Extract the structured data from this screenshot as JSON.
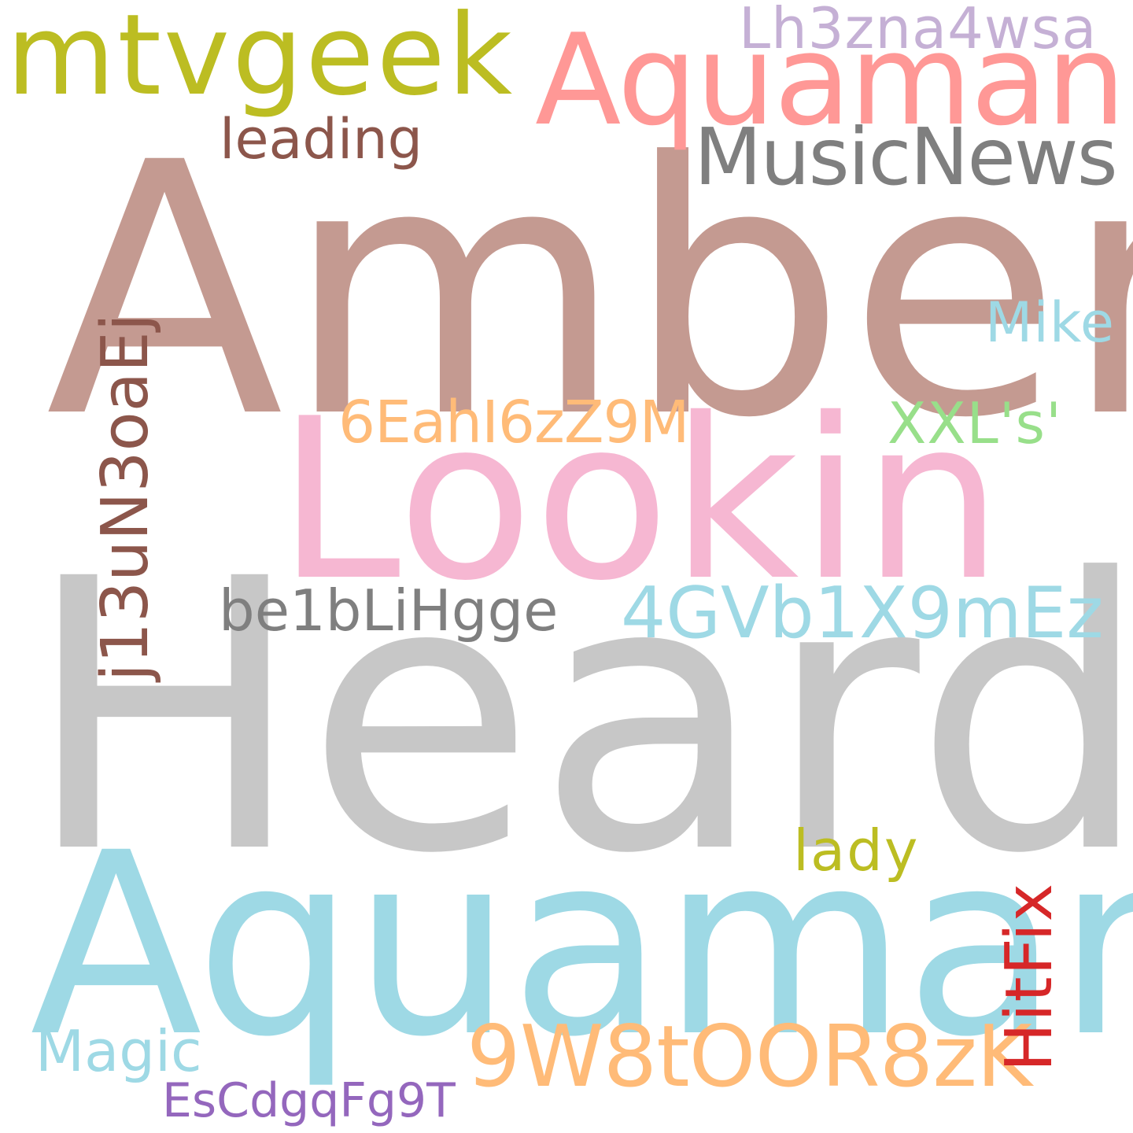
{
  "word_cloud": {
    "background": "#ffffff",
    "words": [
      {
        "text": "Amber",
        "color": "#c49a91"
      },
      {
        "text": "Heard",
        "color": "#c7c7c7"
      },
      {
        "text": "Aquaman",
        "color": "#9ed9e5"
      },
      {
        "text": "Lookin",
        "color": "#f6b7d2"
      },
      {
        "text": "Aquaman'",
        "color": "#ff9896"
      },
      {
        "text": "mtvgeek",
        "color": "#bcbd22"
      },
      {
        "text": "MusicNews",
        "color": "#7f7f7f"
      },
      {
        "text": "9W8tOOR8zK",
        "color": "#ffbb78"
      },
      {
        "text": "4GVb1X9mEz",
        "color": "#9ed9e5"
      },
      {
        "text": "Lh3zna4wsa",
        "color": "#c5b0d5"
      },
      {
        "text": "6EahI6zZ9M",
        "color": "#ffbb78"
      },
      {
        "text": "be1bLiHgge",
        "color": "#7f7f7f"
      },
      {
        "text": "XXL's'",
        "color": "#98df8a"
      },
      {
        "text": "leading",
        "color": "#8c564b"
      },
      {
        "text": "Mike",
        "color": "#9ed9e5"
      },
      {
        "text": "lady",
        "color": "#bcbd22"
      },
      {
        "text": "Magic",
        "color": "#9ed9e5"
      },
      {
        "text": "EsCdgqFg9T",
        "color": "#9467bd"
      },
      {
        "text": "j13uN3oaEj",
        "color": "#8c564b"
      },
      {
        "text": "HitFix",
        "color": "#d62728"
      }
    ]
  }
}
